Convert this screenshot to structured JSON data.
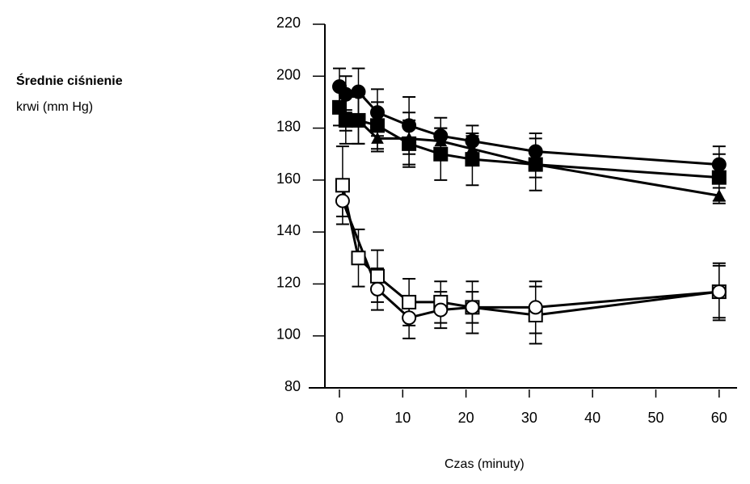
{
  "chart_data": {
    "type": "line",
    "title": "",
    "ylabel": [
      "Średnie ciśnienie",
      "krwi (mm Hg)"
    ],
    "xlabel": "Czas (minuty)",
    "xlim": [
      -2,
      63
    ],
    "ylim": [
      80,
      220
    ],
    "xticks": [
      0,
      10,
      20,
      30,
      40,
      50,
      60
    ],
    "yticks": [
      80,
      100,
      120,
      140,
      160,
      180,
      200,
      220
    ],
    "grid": false,
    "legend": "none",
    "series": [
      {
        "name": "filled-circle",
        "marker": "circle",
        "fill": "#000000",
        "x": [
          0,
          1,
          3,
          6,
          11,
          16,
          21,
          31,
          60
        ],
        "y": [
          196,
          193,
          194,
          186,
          181,
          177,
          175,
          171,
          166
        ],
        "err": [
          7,
          7,
          9,
          9,
          11,
          7,
          6,
          7,
          7
        ]
      },
      {
        "name": "filled-square",
        "marker": "square",
        "fill": "#000000",
        "x": [
          0,
          1,
          3,
          6,
          11,
          16,
          21,
          31,
          60
        ],
        "y": [
          188,
          183,
          183,
          181,
          174,
          170,
          168,
          166,
          161
        ],
        "err": [
          7,
          9,
          9,
          9,
          9,
          10,
          10,
          10,
          9
        ]
      },
      {
        "name": "filled-triangle",
        "marker": "triangle",
        "fill": "#000000",
        "x": [
          1,
          3,
          6,
          11,
          16,
          21,
          31,
          60
        ],
        "y": [
          183,
          183,
          176,
          176,
          175,
          172,
          166,
          154
        ],
        "err": [
          4,
          9,
          5,
          10,
          5,
          5,
          5,
          3
        ]
      },
      {
        "name": "open-square",
        "marker": "square",
        "fill": "#ffffff",
        "x": [
          0.5,
          3,
          6,
          11,
          16,
          21,
          31,
          60
        ],
        "y": [
          158,
          130,
          123,
          113,
          113,
          111,
          108,
          117
        ],
        "err": [
          15,
          11,
          10,
          9,
          8,
          10,
          11,
          11
        ]
      },
      {
        "name": "open-circle",
        "marker": "circle",
        "fill": "#ffffff",
        "x": [
          0.5,
          6,
          11,
          16,
          21,
          31,
          60
        ],
        "y": [
          152,
          118,
          107,
          110,
          111,
          111,
          117
        ],
        "err": [
          6,
          8,
          8,
          7,
          6,
          10,
          10
        ]
      }
    ]
  }
}
